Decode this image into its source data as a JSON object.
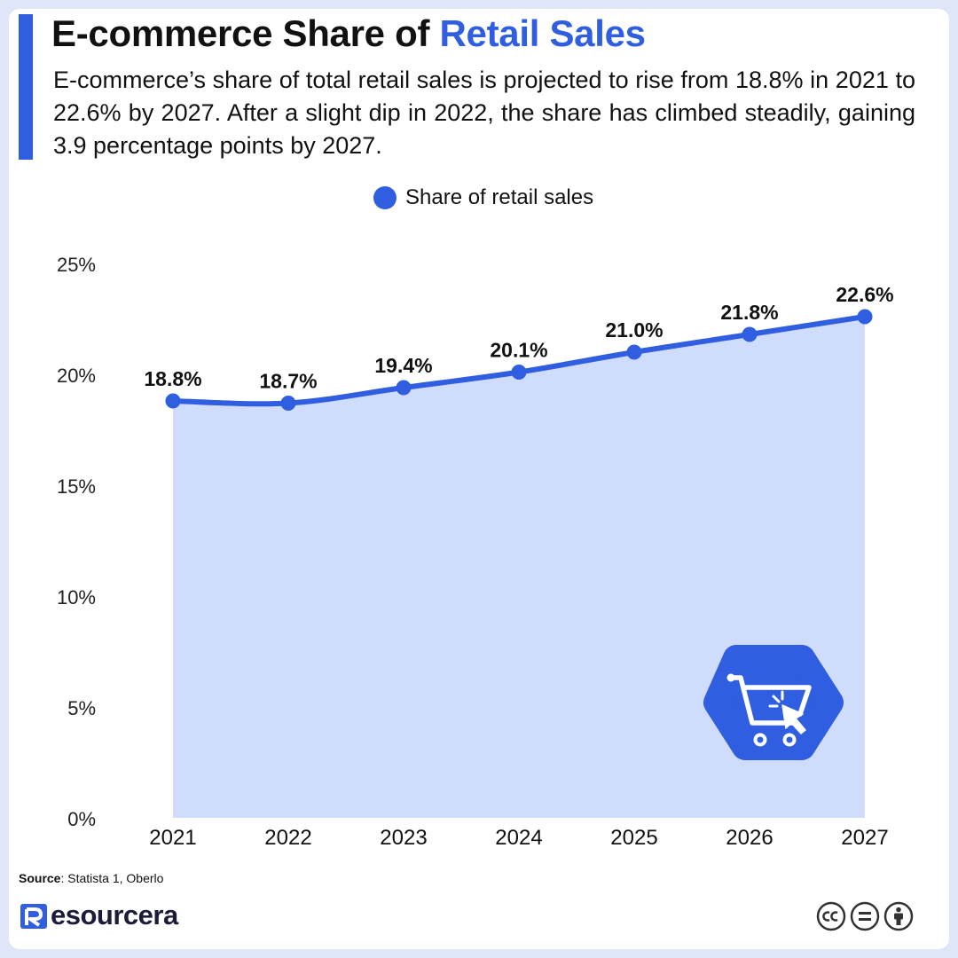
{
  "header": {
    "title_main": "E-commerce Share of ",
    "title_highlight": "Retail Sales",
    "subtitle": "E-commerce’s share of total retail sales is projected to rise from 18.8% in 2021 to 22.6% by 2027. After a slight dip in 2022, the share has climbed steadily, gaining 3.9 percentage points by 2027."
  },
  "chart_data": {
    "type": "area",
    "title": "E-commerce Share of Retail Sales",
    "categories": [
      "2021",
      "2022",
      "2023",
      "2024",
      "2025",
      "2026",
      "2027"
    ],
    "series": [
      {
        "name": "Share of retail sales",
        "values": [
          18.8,
          18.7,
          19.4,
          20.1,
          21.0,
          21.8,
          22.6
        ],
        "labels": [
          "18.8%",
          "18.7%",
          "19.4%",
          "20.1%",
          "21.0%",
          "21.8%",
          "22.6%"
        ],
        "color": "#2f5ee0"
      }
    ],
    "y_ticks": [
      0,
      5,
      10,
      15,
      20,
      25
    ],
    "y_tick_labels": [
      "0%",
      "5%",
      "10%",
      "15%",
      "20%",
      "25%"
    ],
    "ylim": [
      0,
      25
    ],
    "xlabel": "",
    "ylabel": "",
    "grid": false,
    "legend_position": "top-center",
    "fill_color": "#d0dcfc"
  },
  "source": {
    "label": "Source",
    "text": ": Statista 1, Oberlo"
  },
  "brand": {
    "name": "esourcera",
    "logo_icon": "resourcera-r-logo-icon"
  },
  "license_icons": [
    "cc-icon",
    "equals-icon",
    "person-icon"
  ],
  "badge_icon": "shopping-cart-cursor-icon"
}
